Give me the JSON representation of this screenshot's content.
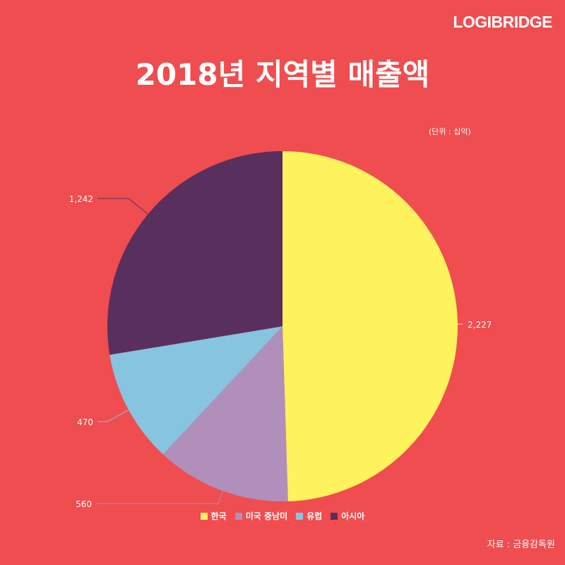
{
  "brand": "LOGIBRIDGE",
  "title": "2018년 지역별 매출액",
  "unit_note": "(단위 : 십억)",
  "source": "자료 : 금융감독원",
  "legend": [
    {
      "label": "한국",
      "color": "#fef25d"
    },
    {
      "label": "미국 중남미",
      "color": "#b08fba"
    },
    {
      "label": "유럽",
      "color": "#86c4e0"
    },
    {
      "label": "아시아",
      "color": "#592f5e"
    }
  ],
  "chart_data": {
    "type": "pie",
    "title": "2018년 지역별 매출액",
    "unit": "(단위 : 십억)",
    "categories": [
      "한국",
      "미국 중남미",
      "유럽",
      "아시아"
    ],
    "values": [
      2227,
      560,
      470,
      1242
    ],
    "labels": [
      "2,227",
      "560",
      "470",
      "1,242"
    ],
    "colors": [
      "#fef25d",
      "#b08fba",
      "#86c4e0",
      "#592f5e"
    ],
    "legend_position": "bottom"
  }
}
